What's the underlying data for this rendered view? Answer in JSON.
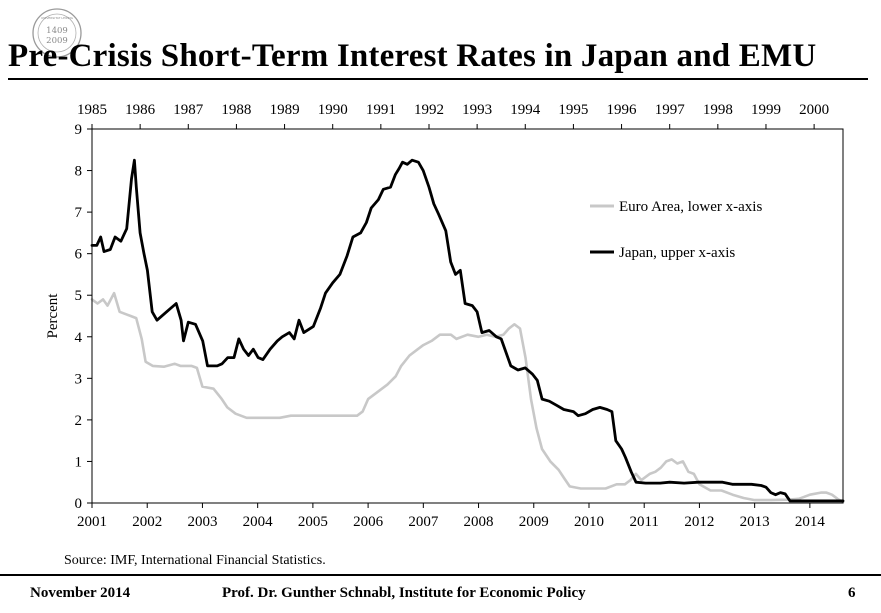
{
  "header": {
    "seal": {
      "line1": "1409",
      "line2": "2009",
      "top_text": "UNIVERSITAT LEIPZIG"
    },
    "title": "Pre-Crisis Short-Term Interest Rates in Japan and EMU"
  },
  "chart_data": {
    "type": "line",
    "title": "Pre-Crisis Short-Term Interest Rates in Japan and EMU",
    "ylabel": "Percent",
    "ylim": [
      0,
      9
    ],
    "yticks": [
      0,
      1,
      2,
      3,
      4,
      5,
      6,
      7,
      8,
      9
    ],
    "lower_x_axis": {
      "label": "Euro Area",
      "range": [
        2001,
        2014.6
      ],
      "ticks": [
        "2001",
        "2002",
        "2003",
        "2004",
        "2005",
        "2006",
        "2007",
        "2008",
        "2009",
        "2010",
        "2011",
        "2012",
        "2013",
        "2014"
      ]
    },
    "upper_x_axis": {
      "label": "Japan",
      "range": [
        1985,
        2000.6
      ],
      "ticks": [
        "1985",
        "1986",
        "1987",
        "1988",
        "1989",
        "1990",
        "1991",
        "1992",
        "1993",
        "1994",
        "1995",
        "1996",
        "1997",
        "1998",
        "1999",
        "2000"
      ]
    },
    "legend": {
      "position": "upper-right",
      "entries": [
        "Euro Area, lower x-axis",
        "Japan, upper x-axis"
      ]
    },
    "series": [
      {
        "name": "Euro Area, lower x-axis",
        "axis": "lower",
        "color": "#c8c8c8",
        "points": [
          [
            2001.0,
            4.9
          ],
          [
            2001.1,
            4.8
          ],
          [
            2001.2,
            4.9
          ],
          [
            2001.28,
            4.75
          ],
          [
            2001.4,
            5.05
          ],
          [
            2001.5,
            4.6
          ],
          [
            2001.7,
            4.5
          ],
          [
            2001.8,
            4.45
          ],
          [
            2001.9,
            3.95
          ],
          [
            2001.97,
            3.4
          ],
          [
            2002.1,
            3.3
          ],
          [
            2002.3,
            3.28
          ],
          [
            2002.5,
            3.35
          ],
          [
            2002.6,
            3.3
          ],
          [
            2002.8,
            3.3
          ],
          [
            2002.9,
            3.25
          ],
          [
            2003.0,
            2.8
          ],
          [
            2003.2,
            2.75
          ],
          [
            2003.35,
            2.5
          ],
          [
            2003.45,
            2.3
          ],
          [
            2003.6,
            2.15
          ],
          [
            2003.8,
            2.05
          ],
          [
            2004.0,
            2.05
          ],
          [
            2004.2,
            2.05
          ],
          [
            2004.4,
            2.05
          ],
          [
            2004.6,
            2.1
          ],
          [
            2004.8,
            2.1
          ],
          [
            2005.0,
            2.1
          ],
          [
            2005.2,
            2.1
          ],
          [
            2005.4,
            2.1
          ],
          [
            2005.6,
            2.1
          ],
          [
            2005.8,
            2.1
          ],
          [
            2005.9,
            2.2
          ],
          [
            2006.0,
            2.5
          ],
          [
            2006.2,
            2.7
          ],
          [
            2006.35,
            2.85
          ],
          [
            2006.5,
            3.05
          ],
          [
            2006.6,
            3.3
          ],
          [
            2006.75,
            3.55
          ],
          [
            2006.9,
            3.7
          ],
          [
            2007.0,
            3.8
          ],
          [
            2007.15,
            3.9
          ],
          [
            2007.3,
            4.05
          ],
          [
            2007.5,
            4.05
          ],
          [
            2007.6,
            3.95
          ],
          [
            2007.8,
            4.05
          ],
          [
            2008.0,
            4.0
          ],
          [
            2008.15,
            4.05
          ],
          [
            2008.3,
            4.0
          ],
          [
            2008.45,
            4.05
          ],
          [
            2008.55,
            4.2
          ],
          [
            2008.65,
            4.3
          ],
          [
            2008.75,
            4.2
          ],
          [
            2008.85,
            3.5
          ],
          [
            2008.95,
            2.5
          ],
          [
            2009.05,
            1.8
          ],
          [
            2009.15,
            1.3
          ],
          [
            2009.3,
            1.0
          ],
          [
            2009.45,
            0.8
          ],
          [
            2009.55,
            0.6
          ],
          [
            2009.65,
            0.4
          ],
          [
            2009.85,
            0.35
          ],
          [
            2010.1,
            0.35
          ],
          [
            2010.3,
            0.35
          ],
          [
            2010.5,
            0.45
          ],
          [
            2010.65,
            0.45
          ],
          [
            2010.75,
            0.55
          ],
          [
            2010.85,
            0.7
          ],
          [
            2010.95,
            0.55
          ],
          [
            2011.1,
            0.7
          ],
          [
            2011.2,
            0.75
          ],
          [
            2011.3,
            0.85
          ],
          [
            2011.4,
            1.0
          ],
          [
            2011.5,
            1.05
          ],
          [
            2011.6,
            0.95
          ],
          [
            2011.7,
            1.0
          ],
          [
            2011.8,
            0.75
          ],
          [
            2011.9,
            0.7
          ],
          [
            2012.0,
            0.45
          ],
          [
            2012.2,
            0.3
          ],
          [
            2012.4,
            0.3
          ],
          [
            2012.6,
            0.2
          ],
          [
            2012.8,
            0.12
          ],
          [
            2013.0,
            0.07
          ],
          [
            2013.3,
            0.07
          ],
          [
            2013.6,
            0.08
          ],
          [
            2013.8,
            0.1
          ],
          [
            2013.9,
            0.15
          ],
          [
            2014.0,
            0.2
          ],
          [
            2014.2,
            0.25
          ],
          [
            2014.3,
            0.25
          ],
          [
            2014.4,
            0.2
          ],
          [
            2014.5,
            0.1
          ],
          [
            2014.6,
            0.02
          ]
        ]
      },
      {
        "name": "Japan, upper x-axis",
        "axis": "upper",
        "color": "#000000",
        "points": [
          [
            1985.0,
            6.2
          ],
          [
            1985.1,
            6.2
          ],
          [
            1985.18,
            6.4
          ],
          [
            1985.25,
            6.05
          ],
          [
            1985.38,
            6.1
          ],
          [
            1985.48,
            6.4
          ],
          [
            1985.6,
            6.3
          ],
          [
            1985.72,
            6.6
          ],
          [
            1985.82,
            7.8
          ],
          [
            1985.88,
            8.25
          ],
          [
            1985.92,
            7.6
          ],
          [
            1986.0,
            6.5
          ],
          [
            1986.08,
            6.0
          ],
          [
            1986.15,
            5.6
          ],
          [
            1986.25,
            4.6
          ],
          [
            1986.35,
            4.4
          ],
          [
            1986.55,
            4.6
          ],
          [
            1986.75,
            4.8
          ],
          [
            1986.85,
            4.4
          ],
          [
            1986.9,
            3.9
          ],
          [
            1987.0,
            4.35
          ],
          [
            1987.15,
            4.3
          ],
          [
            1987.3,
            3.9
          ],
          [
            1987.4,
            3.3
          ],
          [
            1987.6,
            3.3
          ],
          [
            1987.7,
            3.35
          ],
          [
            1987.82,
            3.5
          ],
          [
            1987.95,
            3.5
          ],
          [
            1988.05,
            3.95
          ],
          [
            1988.15,
            3.7
          ],
          [
            1988.25,
            3.55
          ],
          [
            1988.35,
            3.7
          ],
          [
            1988.45,
            3.5
          ],
          [
            1988.55,
            3.45
          ],
          [
            1988.7,
            3.7
          ],
          [
            1988.85,
            3.9
          ],
          [
            1988.95,
            4.0
          ],
          [
            1989.1,
            4.1
          ],
          [
            1989.2,
            3.95
          ],
          [
            1989.3,
            4.4
          ],
          [
            1989.4,
            4.1
          ],
          [
            1989.6,
            4.25
          ],
          [
            1989.75,
            4.7
          ],
          [
            1989.85,
            5.05
          ],
          [
            1990.0,
            5.3
          ],
          [
            1990.15,
            5.5
          ],
          [
            1990.3,
            5.95
          ],
          [
            1990.42,
            6.4
          ],
          [
            1990.58,
            6.5
          ],
          [
            1990.7,
            6.75
          ],
          [
            1990.8,
            7.1
          ],
          [
            1990.95,
            7.3
          ],
          [
            1991.05,
            7.55
          ],
          [
            1991.2,
            7.6
          ],
          [
            1991.3,
            7.9
          ],
          [
            1991.38,
            8.05
          ],
          [
            1991.45,
            8.2
          ],
          [
            1991.55,
            8.15
          ],
          [
            1991.65,
            8.25
          ],
          [
            1991.78,
            8.2
          ],
          [
            1991.88,
            8.0
          ],
          [
            1992.0,
            7.6
          ],
          [
            1992.1,
            7.2
          ],
          [
            1992.2,
            6.95
          ],
          [
            1992.35,
            6.55
          ],
          [
            1992.45,
            5.8
          ],
          [
            1992.55,
            5.5
          ],
          [
            1992.65,
            5.6
          ],
          [
            1992.75,
            4.8
          ],
          [
            1992.9,
            4.75
          ],
          [
            1993.0,
            4.6
          ],
          [
            1993.1,
            4.1
          ],
          [
            1993.25,
            4.15
          ],
          [
            1993.4,
            4.0
          ],
          [
            1993.5,
            3.95
          ],
          [
            1993.7,
            3.3
          ],
          [
            1993.85,
            3.2
          ],
          [
            1994.0,
            3.25
          ],
          [
            1994.15,
            3.1
          ],
          [
            1994.25,
            2.95
          ],
          [
            1994.35,
            2.5
          ],
          [
            1994.5,
            2.45
          ],
          [
            1994.65,
            2.35
          ],
          [
            1994.8,
            2.25
          ],
          [
            1995.0,
            2.2
          ],
          [
            1995.1,
            2.1
          ],
          [
            1995.25,
            2.15
          ],
          [
            1995.4,
            2.25
          ],
          [
            1995.55,
            2.3
          ],
          [
            1995.7,
            2.25
          ],
          [
            1995.8,
            2.2
          ],
          [
            1995.88,
            1.5
          ],
          [
            1996.0,
            1.3
          ],
          [
            1996.08,
            1.1
          ],
          [
            1996.2,
            0.75
          ],
          [
            1996.3,
            0.5
          ],
          [
            1996.5,
            0.48
          ],
          [
            1996.8,
            0.48
          ],
          [
            1997.0,
            0.5
          ],
          [
            1997.3,
            0.48
          ],
          [
            1997.6,
            0.5
          ],
          [
            1997.9,
            0.5
          ],
          [
            1998.1,
            0.5
          ],
          [
            1998.3,
            0.45
          ],
          [
            1998.5,
            0.45
          ],
          [
            1998.7,
            0.45
          ],
          [
            1998.9,
            0.42
          ],
          [
            1999.0,
            0.38
          ],
          [
            1999.1,
            0.25
          ],
          [
            1999.2,
            0.2
          ],
          [
            1999.3,
            0.25
          ],
          [
            1999.4,
            0.22
          ],
          [
            1999.5,
            0.05
          ],
          [
            1999.7,
            0.05
          ],
          [
            1999.9,
            0.05
          ],
          [
            2000.0,
            0.05
          ],
          [
            2000.2,
            0.05
          ],
          [
            2000.5,
            0.05
          ],
          [
            2000.6,
            0.05
          ]
        ]
      }
    ]
  },
  "source": "Source: IMF, International Financial Statistics.",
  "footer": {
    "date": "November 2014",
    "author": "Prof. Dr. Gunther Schnabl, Institute for Economic Policy",
    "page": "6"
  }
}
